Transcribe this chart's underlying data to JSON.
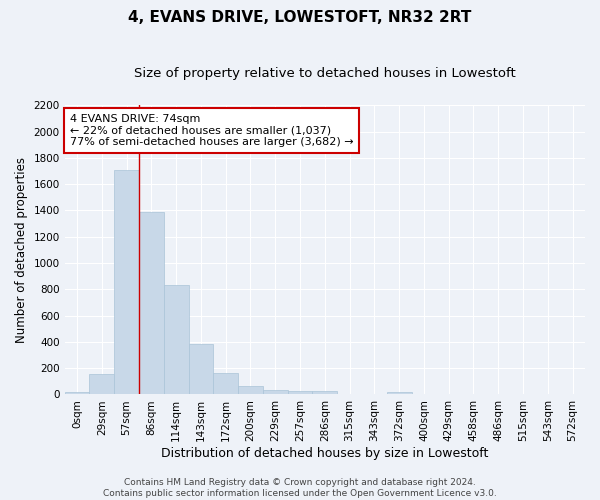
{
  "title": "4, EVANS DRIVE, LOWESTOFT, NR32 2RT",
  "subtitle": "Size of property relative to detached houses in Lowestoft",
  "xlabel": "Distribution of detached houses by size in Lowestoft",
  "ylabel": "Number of detached properties",
  "bin_labels": [
    "0sqm",
    "29sqm",
    "57sqm",
    "86sqm",
    "114sqm",
    "143sqm",
    "172sqm",
    "200sqm",
    "229sqm",
    "257sqm",
    "286sqm",
    "315sqm",
    "343sqm",
    "372sqm",
    "400sqm",
    "429sqm",
    "458sqm",
    "486sqm",
    "515sqm",
    "543sqm",
    "572sqm"
  ],
  "bar_heights": [
    15,
    155,
    1710,
    1390,
    835,
    385,
    163,
    65,
    35,
    28,
    28,
    0,
    0,
    18,
    0,
    0,
    0,
    0,
    0,
    0,
    0
  ],
  "bar_color": "#c8d8e8",
  "bar_edge_color": "#aac4d8",
  "background_color": "#eef2f8",
  "grid_color": "#ffffff",
  "ylim": [
    0,
    2200
  ],
  "yticks": [
    0,
    200,
    400,
    600,
    800,
    1000,
    1200,
    1400,
    1600,
    1800,
    2000,
    2200
  ],
  "property_line_x": 2.5,
  "annotation_line1": "4 EVANS DRIVE: 74sqm",
  "annotation_line2": "← 22% of detached houses are smaller (1,037)",
  "annotation_line3": "77% of semi-detached houses are larger (3,682) →",
  "annotation_box_color": "#ffffff",
  "annotation_border_color": "#cc0000",
  "footer_text": "Contains HM Land Registry data © Crown copyright and database right 2024.\nContains public sector information licensed under the Open Government Licence v3.0.",
  "title_fontsize": 11,
  "subtitle_fontsize": 9.5,
  "xlabel_fontsize": 9,
  "ylabel_fontsize": 8.5,
  "tick_fontsize": 7.5,
  "annotation_fontsize": 8,
  "footer_fontsize": 6.5
}
